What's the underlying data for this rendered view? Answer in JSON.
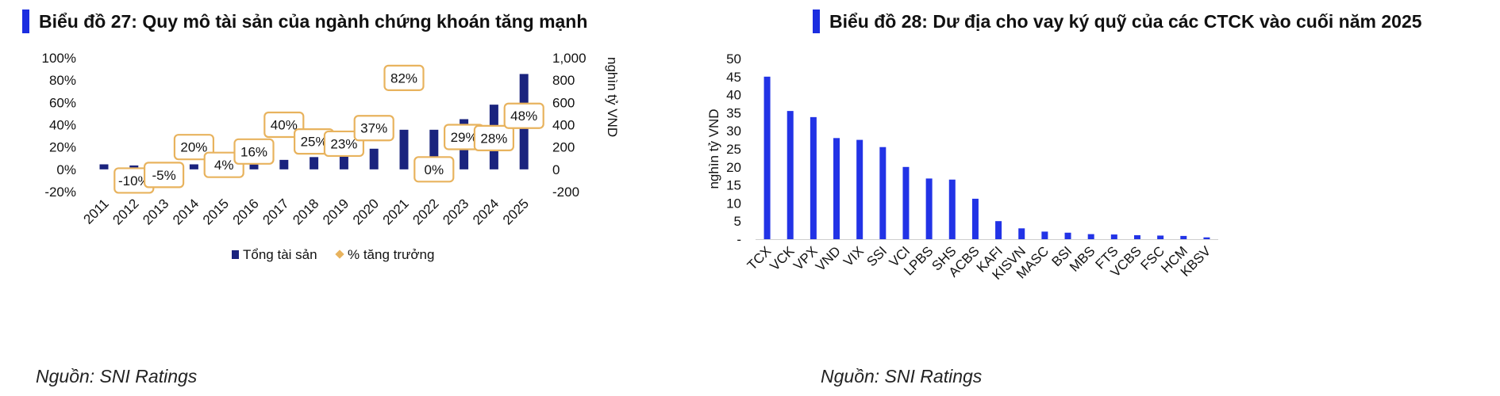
{
  "chart_data": [
    {
      "type": "bar",
      "title": "Biểu đồ 27: Quy mô tài sản của ngành chứng khoán tăng mạnh",
      "source": "Nguồn: SNI Ratings",
      "categories": [
        "2011",
        "2012",
        "2013",
        "2014",
        "2015",
        "2016",
        "2017",
        "2018",
        "2019",
        "2020",
        "2021",
        "2022",
        "2023",
        "2024",
        "2025"
      ],
      "series": [
        {
          "name": "Tổng tài sản",
          "kind": "bar",
          "axis": "right",
          "color": "#1a237e",
          "values": [
            45,
            35,
            35,
            45,
            50,
            55,
            85,
            110,
            135,
            185,
            355,
            355,
            450,
            580,
            855
          ]
        },
        {
          "name": "% tăng trưởng",
          "kind": "label",
          "axis": "left",
          "color": "#e8b35e",
          "values": [
            null,
            -10,
            -5,
            20,
            4,
            16,
            40,
            25,
            23,
            37,
            82,
            0,
            29,
            28,
            48
          ],
          "labels": [
            "",
            "-10%",
            "-5%",
            "20%",
            "4%",
            "16%",
            "40%",
            "25%",
            "23%",
            "37%",
            "82%",
            "0%",
            "29%",
            "28%",
            "48%"
          ]
        }
      ],
      "y_left": {
        "ylim": [
          -20,
          100
        ],
        "ticks": [
          -20,
          0,
          20,
          40,
          60,
          80,
          100
        ],
        "tick_labels": [
          "-20%",
          "0%",
          "20%",
          "40%",
          "60%",
          "80%",
          "100%"
        ]
      },
      "y_right": {
        "label": "nghìn tỷ VND",
        "ylim": [
          -200,
          1000
        ],
        "ticks": [
          -200,
          0,
          200,
          400,
          600,
          800,
          1000
        ],
        "tick_labels": [
          "-200",
          "0",
          "200",
          "400",
          "600",
          "800",
          "1,000"
        ]
      },
      "legend": {
        "position": "bottom",
        "items": [
          "Tổng tài sản",
          "% tăng trưởng"
        ]
      },
      "grid": false
    },
    {
      "type": "bar",
      "title": "Biểu đồ 28: Dư địa cho vay ký quỹ của các CTCK vào cuối năm 2025",
      "source": "Nguồn: SNI Ratings",
      "ylabel": "nghìn tỷ VND",
      "ylim": [
        0,
        50
      ],
      "ticks": [
        0,
        5,
        10,
        15,
        20,
        25,
        30,
        35,
        40,
        45,
        50
      ],
      "tick_labels": [
        "-",
        "5",
        "10",
        "15",
        "20",
        "25",
        "30",
        "35",
        "40",
        "45",
        "50"
      ],
      "categories": [
        "TCX",
        "VCK",
        "VPX",
        "VND",
        "VIX",
        "SSI",
        "VCI",
        "LPBS",
        "SHS",
        "ACBS",
        "KAFI",
        "KISVN",
        "MASC",
        "BSI",
        "MBS",
        "FTS",
        "VCBS",
        "FSC",
        "HCM",
        "KBSV"
      ],
      "values": [
        45,
        35.5,
        33.8,
        28,
        27.5,
        25.5,
        20,
        16.8,
        16.5,
        11.2,
        5,
        3,
        2.1,
        1.8,
        1.4,
        1.3,
        1.1,
        1.0,
        0.9,
        0.5
      ],
      "color": "#2233e6",
      "grid": false
    }
  ]
}
